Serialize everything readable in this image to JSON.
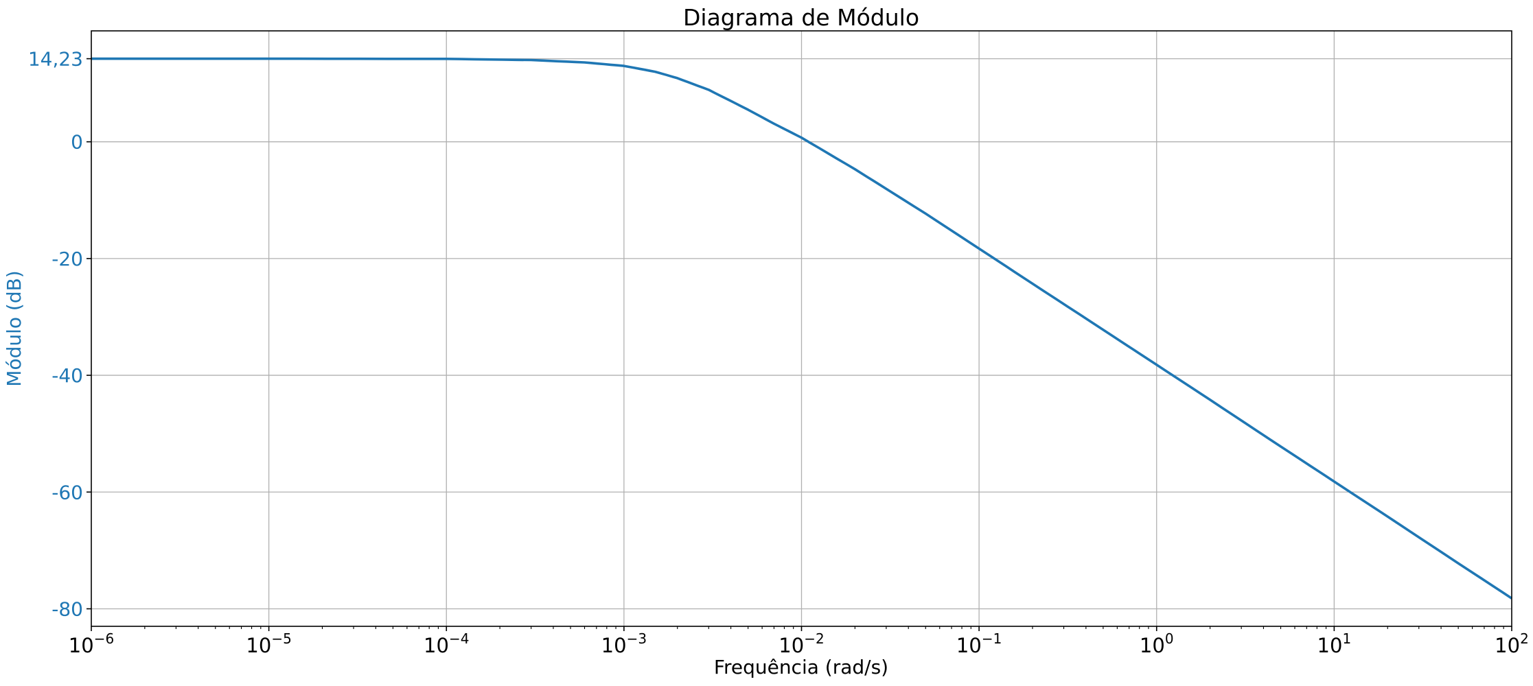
{
  "chart_data": {
    "type": "line",
    "title": "Diagrama de Módulo",
    "xlabel": "Frequência (rad/s)",
    "ylabel": "Módulo (dB)",
    "x_scale": "log",
    "xlim": [
      1e-06,
      100
    ],
    "ylim": [
      -83,
      19
    ],
    "grid": true,
    "legend": "none",
    "accent_color": "#1f77b4",
    "x_ticks": [
      {
        "base": "10",
        "exp": "−6",
        "value": 1e-06
      },
      {
        "base": "10",
        "exp": "−5",
        "value": 1e-05
      },
      {
        "base": "10",
        "exp": "−4",
        "value": 0.0001
      },
      {
        "base": "10",
        "exp": "−3",
        "value": 0.001
      },
      {
        "base": "10",
        "exp": "−2",
        "value": 0.01
      },
      {
        "base": "10",
        "exp": "−1",
        "value": 0.1
      },
      {
        "base": "10",
        "exp": "0",
        "value": 1
      },
      {
        "base": "10",
        "exp": "1",
        "value": 10
      },
      {
        "base": "10",
        "exp": "2",
        "value": 100
      }
    ],
    "y_ticks": [
      {
        "label": "14,23",
        "value": 14.23
      },
      {
        "label": "0",
        "value": 0
      },
      {
        "label": "-20",
        "value": -20
      },
      {
        "label": "-40",
        "value": -40
      },
      {
        "label": "-60",
        "value": -60
      },
      {
        "label": "-80",
        "value": -80
      }
    ],
    "series": [
      {
        "color": "#1f77b4",
        "x": [
          1e-06,
          1e-05,
          0.0001,
          0.0003,
          0.0006,
          0.001,
          0.0015,
          0.002,
          0.003,
          0.005,
          0.007,
          0.01,
          0.02,
          0.05,
          0.1,
          0.2,
          0.5,
          1,
          2,
          5,
          10,
          20,
          50,
          100
        ],
        "y": [
          14.23,
          14.23,
          14.2,
          14.0,
          13.6,
          13.0,
          12.0,
          10.9,
          8.9,
          5.5,
          3.1,
          0.7,
          -4.7,
          -12.3,
          -18.3,
          -24.3,
          -32.2,
          -38.2,
          -44.2,
          -52.2,
          -58.2,
          -64.2,
          -72.2,
          -78.2
        ]
      }
    ]
  }
}
